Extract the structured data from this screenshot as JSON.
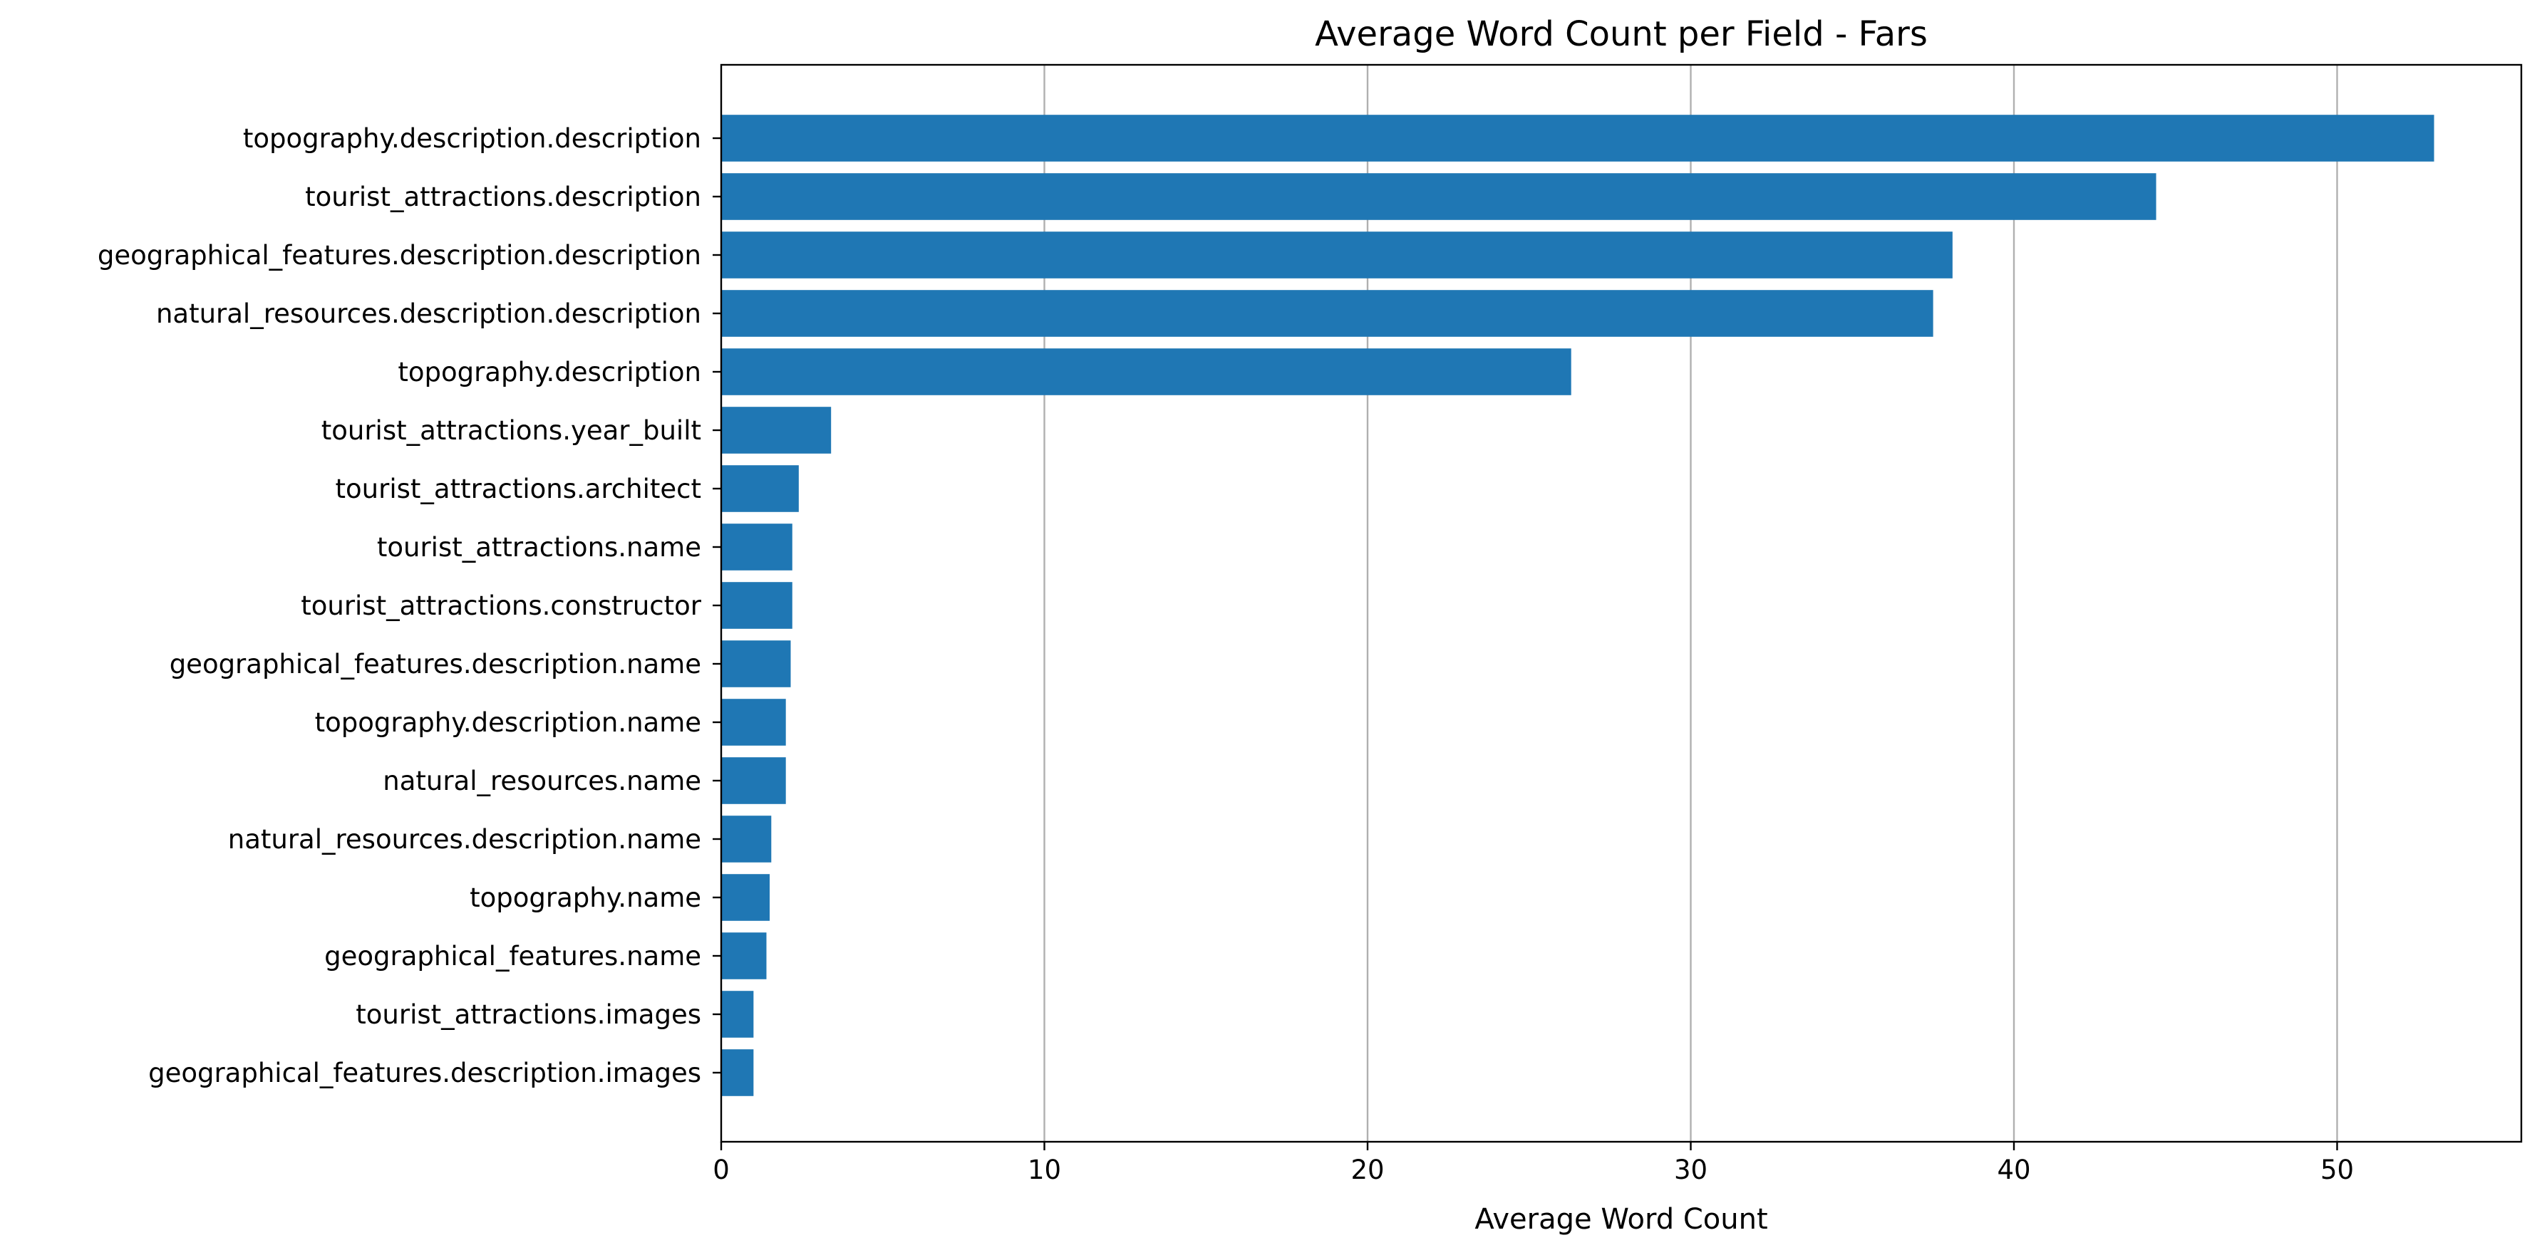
{
  "chart_data": {
    "type": "bar",
    "orientation": "horizontal",
    "title": "Average Word Count per Field - Fars",
    "xlabel": "Average Word Count",
    "ylabel": "",
    "xlim": [
      0,
      55.7
    ],
    "xticks": [
      0,
      10,
      20,
      30,
      40,
      50
    ],
    "grid": "x",
    "legend": "none",
    "bar_color": "#1f77b4",
    "categories": [
      "topography.description.description",
      "tourist_attractions.description",
      "geographical_features.description.description",
      "natural_resources.description.description",
      "topography.description",
      "tourist_attractions.year_built",
      "tourist_attractions.architect",
      "tourist_attractions.name",
      "tourist_attractions.constructor",
      "geographical_features.description.name",
      "topography.description.name",
      "natural_resources.name",
      "natural_resources.description.name",
      "topography.name",
      "geographical_features.name",
      "tourist_attractions.images",
      "geographical_features.description.images"
    ],
    "values": [
      53.0,
      44.4,
      38.1,
      37.5,
      26.3,
      3.4,
      2.4,
      2.2,
      2.2,
      2.15,
      2.0,
      2.0,
      1.55,
      1.5,
      1.4,
      1.0,
      1.0
    ]
  }
}
